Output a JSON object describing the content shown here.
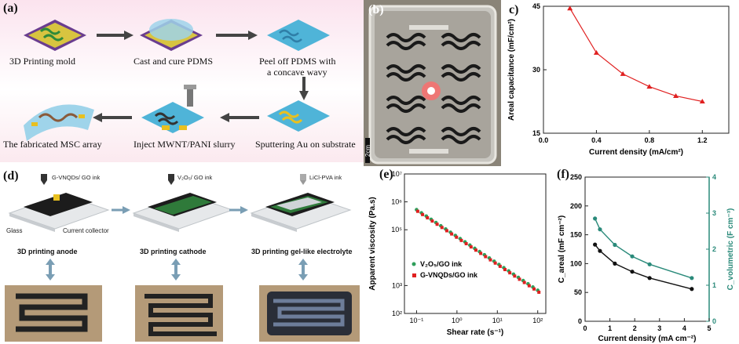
{
  "panels": {
    "a": {
      "label": "(a)",
      "steps": [
        "3D Printing mold",
        "Cast and cure PDMS",
        "Peel off PDMS with",
        "a concave wavy",
        "The fabricated MSC array",
        "Inject MWNT/PANI slurry",
        "Sputtering Au on substrate"
      ]
    },
    "b": {
      "label": "(b)",
      "scale": "2cm"
    },
    "c": {
      "label": "c)"
    },
    "d": {
      "label": "(d)",
      "inks": [
        "G-VNQDs/ GO ink",
        "V₂O₅/ GO ink",
        "LiCl-PVA ink"
      ],
      "glass": "Glass",
      "collector": "Current collector",
      "steps": [
        "3D printing anode",
        "3D printing cathode",
        "3D printing gel-like electrolyte"
      ]
    },
    "e": {
      "label": "(e)"
    },
    "f": {
      "label": "(f)"
    }
  },
  "chart_data": [
    {
      "id": "c",
      "type": "line",
      "xlabel": "Current density (mA/cm²)",
      "ylabel": "Areal capacitance (mF/cm²)",
      "xlim": [
        0.0,
        1.4
      ],
      "ylim": [
        15,
        45
      ],
      "xticks": [
        "0.0",
        "0.4",
        "0.8",
        "1.2"
      ],
      "yticks": [
        "15",
        "30",
        "45"
      ],
      "x": [
        0.2,
        0.4,
        0.6,
        0.8,
        1.0,
        1.2
      ],
      "series": [
        {
          "values": [
            44.5,
            34.0,
            29.0,
            26.0,
            23.8,
            22.5
          ],
          "color": "#e02020"
        }
      ]
    },
    {
      "id": "e",
      "type": "scatter",
      "log_x": true,
      "log_y": true,
      "xlabel": "Shear rate (s⁻¹)",
      "ylabel": "Apparent viscosity (Pa.s)",
      "xlim_exp": [
        -1.3,
        2.2
      ],
      "ylim_exp": [
        2,
        7
      ],
      "xticks": [
        "10⁻¹",
        "10⁰",
        "10¹",
        "10²"
      ],
      "yticks": [
        "10²",
        "10³",
        "10⁵",
        "10⁶",
        "10⁷"
      ],
      "series": [
        {
          "name": "V₂O₅/GO ink",
          "color": "#2e9e5a",
          "x_exp": [
            -1.0,
            2.0
          ],
          "y_exp": [
            5.72,
            2.83
          ]
        },
        {
          "name": "G-VNQDs/GO ink",
          "color": "#e02020",
          "x_exp": [
            -1.0,
            2.0
          ],
          "y_exp": [
            5.66,
            2.76
          ]
        }
      ]
    },
    {
      "id": "f",
      "type": "line",
      "xlabel": "Current density (mA cm⁻²)",
      "ylabel_left": "C_areal (mF cm⁻²)",
      "ylabel_right": "C_volumetric (F cm⁻³)",
      "xlim": [
        0,
        5
      ],
      "ylim_left": [
        0,
        250
      ],
      "ylim_right": [
        0,
        4
      ],
      "xticks": [
        "0",
        "1",
        "2",
        "3",
        "4",
        "5"
      ],
      "yticks_left": [
        "0",
        "50",
        "100",
        "150",
        "200",
        "250"
      ],
      "yticks_right": [
        "0",
        "1",
        "2",
        "3",
        "4"
      ],
      "x": [
        0.4,
        0.6,
        1.2,
        1.9,
        2.6,
        4.3
      ],
      "series": [
        {
          "axis": "left",
          "color": "#111111",
          "values": [
            133,
            122,
            100,
            86,
            75,
            56
          ]
        },
        {
          "axis": "right",
          "color": "#2a8a7a",
          "values": [
            2.85,
            2.55,
            2.12,
            1.8,
            1.58,
            1.2
          ]
        }
      ]
    }
  ]
}
